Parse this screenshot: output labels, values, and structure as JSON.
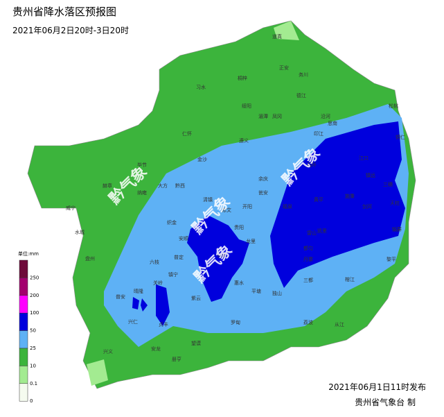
{
  "title": "贵州省降水落区预报图",
  "subtitle": "2021年06月2日20时-3日20时",
  "legend": {
    "unit": "单位:mm",
    "ticks": [
      250,
      200,
      100,
      50,
      25,
      10,
      0.1,
      0
    ],
    "colors": [
      "#6e0b3a",
      "#a3006e",
      "#ff00ff",
      "#0000dd",
      "#5eb1f5",
      "#3cb43c",
      "#a3eb91",
      "#f5fbef"
    ]
  },
  "places": [
    "道真",
    "正安",
    "务川",
    "习水",
    "桐梓",
    "绥阳",
    "凤冈",
    "德江",
    "沿河",
    "印江",
    "松桃",
    "湄潭",
    "思南",
    "铜仁",
    "江口",
    "遵义",
    "余庆",
    "石阡",
    "金沙",
    "仁怀",
    "赫章",
    "大方",
    "毕节",
    "黔西",
    "威宁",
    "纳雍",
    "织金",
    "修文",
    "开阳",
    "瓮安",
    "黄平",
    "施秉",
    "镇远",
    "三穗",
    "天柱",
    "水城",
    "六枝",
    "普定",
    "安顺",
    "清镇",
    "贵阳",
    "龙里",
    "福泉",
    "凯里",
    "剑河",
    "锦屏",
    "盘州",
    "关岭",
    "镇宁",
    "长顺",
    "惠水",
    "都匀",
    "丹寨",
    "雷山",
    "黎平",
    "普安",
    "晴隆",
    "贞丰",
    "紫云",
    "平塘",
    "独山",
    "三都",
    "榕江",
    "从江",
    "兴仁",
    "兴义",
    "安龙",
    "望谟",
    "罗甸",
    "册亨",
    "荔波"
  ],
  "watermarks": [
    "黔气象",
    "黔气象",
    "黔气象",
    "黔气象"
  ],
  "footer": {
    "issued": "2021年06月1日11时发布",
    "agency": "贵州省气象台 制"
  }
}
